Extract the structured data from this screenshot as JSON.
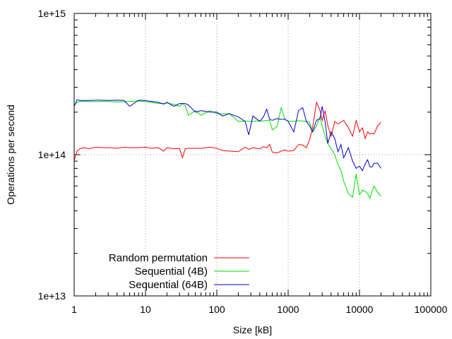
{
  "chart_data": {
    "type": "line",
    "title": "",
    "xlabel": "Size [kB]",
    "ylabel": "Operations per second",
    "x_scale": "log",
    "y_scale": "log",
    "xlim": [
      1,
      100000
    ],
    "ylim": [
      10000000000000.0,
      1000000000000000.0
    ],
    "x_ticks": [
      {
        "value": 1,
        "label": "1"
      },
      {
        "value": 10,
        "label": "10"
      },
      {
        "value": 100,
        "label": "100"
      },
      {
        "value": 1000,
        "label": "1000"
      },
      {
        "value": 10000,
        "label": "10000"
      },
      {
        "value": 100000,
        "label": "100000"
      }
    ],
    "y_ticks": [
      {
        "value": 10000000000000.0,
        "label": "1e+13"
      },
      {
        "value": 100000000000000.0,
        "label": "1e+14"
      },
      {
        "value": 1000000000000000.0,
        "label": "1e+15"
      }
    ],
    "grid": "dotted at major ticks",
    "legend_position": "bottom-left",
    "series": [
      {
        "name": "Random permutation",
        "color": "#ff0000",
        "x": [
          1,
          1.1,
          1.2,
          1.4,
          1.6,
          2,
          2.5,
          3,
          4,
          5,
          6,
          8,
          10,
          12,
          15,
          18,
          20,
          25,
          30,
          33,
          36,
          40,
          50,
          60,
          80,
          100,
          120,
          150,
          200,
          250,
          280,
          320,
          400,
          450,
          500,
          550,
          600,
          700,
          800,
          900,
          1000,
          1200,
          1400,
          1600,
          1800,
          2000,
          2200,
          2500,
          2800,
          3000,
          3300,
          3600,
          4000,
          4500,
          5000,
          5500,
          6000,
          7000,
          8000,
          9000,
          10000,
          11000,
          12000,
          13000,
          14000,
          15000,
          16000,
          18000,
          20000
        ],
        "y": [
          91000000000000.0,
          106000000000000.0,
          110000000000000.0,
          112000000000000.0,
          110000000000000.0,
          113000000000000.0,
          112000000000000.0,
          112000000000000.0,
          111000000000000.0,
          113000000000000.0,
          112000000000000.0,
          112000000000000.0,
          113000000000000.0,
          111000000000000.0,
          112000000000000.0,
          106000000000000.0,
          112000000000000.0,
          110000000000000.0,
          111000000000000.0,
          95000000000000.0,
          110000000000000.0,
          111000000000000.0,
          111000000000000.0,
          111000000000000.0,
          113000000000000.0,
          111000000000000.0,
          107000000000000.0,
          106000000000000.0,
          105000000000000.0,
          113000000000000.0,
          109000000000000.0,
          112000000000000.0,
          110000000000000.0,
          114000000000000.0,
          112000000000000.0,
          118000000000000.0,
          104000000000000.0,
          103000000000000.0,
          106000000000000.0,
          108000000000000.0,
          106000000000000.0,
          107000000000000.0,
          118000000000000.0,
          117000000000000.0,
          112000000000000.0,
          128000000000000.0,
          155000000000000.0,
          235000000000000.0,
          205000000000000.0,
          175000000000000.0,
          205000000000000.0,
          160000000000000.0,
          135000000000000.0,
          172000000000000.0,
          165000000000000.0,
          170000000000000.0,
          175000000000000.0,
          155000000000000.0,
          135000000000000.0,
          175000000000000.0,
          145000000000000.0,
          155000000000000.0,
          130000000000000.0,
          145000000000000.0,
          140000000000000.0,
          142000000000000.0,
          140000000000000.0,
          160000000000000.0,
          170000000000000.0
        ]
      },
      {
        "name": "Sequential (4B)",
        "color": "#00dd00",
        "x": [
          1,
          1.1,
          1.2,
          1.4,
          1.6,
          2,
          2.5,
          3,
          4,
          5,
          6,
          8,
          10,
          12,
          15,
          18,
          20,
          25,
          30,
          33,
          36,
          40,
          50,
          60,
          80,
          100,
          120,
          150,
          200,
          250,
          280,
          320,
          400,
          450,
          500,
          550,
          600,
          700,
          800,
          900,
          1000,
          1200,
          1400,
          1600,
          1800,
          2000,
          2200,
          2500,
          2800,
          3000,
          3300,
          3600,
          4000,
          4500,
          5000,
          5500,
          6000,
          7000,
          8000,
          9000,
          10000,
          11000,
          12000,
          13000,
          14000,
          15000,
          16000,
          18000,
          20000
        ],
        "y": [
          225000000000000.0,
          235000000000000.0,
          238000000000000.0,
          238000000000000.0,
          238000000000000.0,
          237000000000000.0,
          238000000000000.0,
          238000000000000.0,
          236000000000000.0,
          237000000000000.0,
          238000000000000.0,
          240000000000000.0,
          237000000000000.0,
          235000000000000.0,
          230000000000000.0,
          230000000000000.0,
          232000000000000.0,
          227000000000000.0,
          220000000000000.0,
          230000000000000.0,
          222000000000000.0,
          190000000000000.0,
          205000000000000.0,
          190000000000000.0,
          205000000000000.0,
          195000000000000.0,
          195000000000000.0,
          195000000000000.0,
          172000000000000.0,
          173000000000000.0,
          172000000000000.0,
          172000000000000.0,
          174000000000000.0,
          173000000000000.0,
          175000000000000.0,
          175000000000000.0,
          150000000000000.0,
          158000000000000.0,
          215000000000000.0,
          178000000000000.0,
          173000000000000.0,
          172000000000000.0,
          174000000000000.0,
          173000000000000.0,
          172000000000000.0,
          170000000000000.0,
          145000000000000.0,
          160000000000000.0,
          185000000000000.0,
          160000000000000.0,
          135000000000000.0,
          120000000000000.0,
          110000000000000.0,
          100000000000000.0,
          85000000000000.0,
          77000000000000.0,
          65000000000000.0,
          53000000000000.0,
          50000000000000.0,
          73000000000000.0,
          52000000000000.0,
          56000000000000.0,
          55000000000000.0,
          53000000000000.0,
          49000000000000.0,
          55000000000000.0,
          60000000000000.0,
          54000000000000.0,
          51000000000000.0
        ]
      },
      {
        "name": "Sequential (64B)",
        "color": "#0000cc",
        "x": [
          1,
          1.1,
          1.2,
          1.4,
          1.6,
          2,
          2.5,
          3,
          4,
          5,
          6,
          8,
          10,
          12,
          15,
          18,
          20,
          25,
          30,
          33,
          36,
          40,
          50,
          60,
          80,
          100,
          120,
          150,
          200,
          250,
          280,
          320,
          400,
          450,
          500,
          550,
          600,
          700,
          800,
          900,
          1000,
          1200,
          1400,
          1600,
          1800,
          2000,
          2200,
          2500,
          2800,
          3000,
          3300,
          3600,
          4000,
          4500,
          5000,
          5500,
          6000,
          7000,
          8000,
          9000,
          10000,
          11000,
          12000,
          13000,
          14000,
          15000,
          16000,
          18000,
          20000
        ],
        "y": [
          220000000000000.0,
          245000000000000.0,
          242000000000000.0,
          242000000000000.0,
          242000000000000.0,
          243000000000000.0,
          243000000000000.0,
          242000000000000.0,
          243000000000000.0,
          242000000000000.0,
          220000000000000.0,
          243000000000000.0,
          242000000000000.0,
          238000000000000.0,
          235000000000000.0,
          228000000000000.0,
          235000000000000.0,
          220000000000000.0,
          230000000000000.0,
          230000000000000.0,
          230000000000000.0,
          225000000000000.0,
          200000000000000.0,
          205000000000000.0,
          200000000000000.0,
          200000000000000.0,
          188000000000000.0,
          195000000000000.0,
          185000000000000.0,
          172000000000000.0,
          138000000000000.0,
          188000000000000.0,
          172000000000000.0,
          185000000000000.0,
          210000000000000.0,
          178000000000000.0,
          175000000000000.0,
          180000000000000.0,
          178000000000000.0,
          178000000000000.0,
          172000000000000.0,
          145000000000000.0,
          205000000000000.0,
          215000000000000.0,
          172000000000000.0,
          160000000000000.0,
          145000000000000.0,
          175000000000000.0,
          180000000000000.0,
          220000000000000.0,
          170000000000000.0,
          120000000000000.0,
          145000000000000.0,
          130000000000000.0,
          105000000000000.0,
          118000000000000.0,
          95000000000000.0,
          112000000000000.0,
          90000000000000.0,
          80000000000000.0,
          83000000000000.0,
          77000000000000.0,
          86000000000000.0,
          92000000000000.0,
          82000000000000.0,
          82000000000000.0,
          87000000000000.0,
          87000000000000.0,
          80000000000000.0
        ]
      }
    ]
  }
}
